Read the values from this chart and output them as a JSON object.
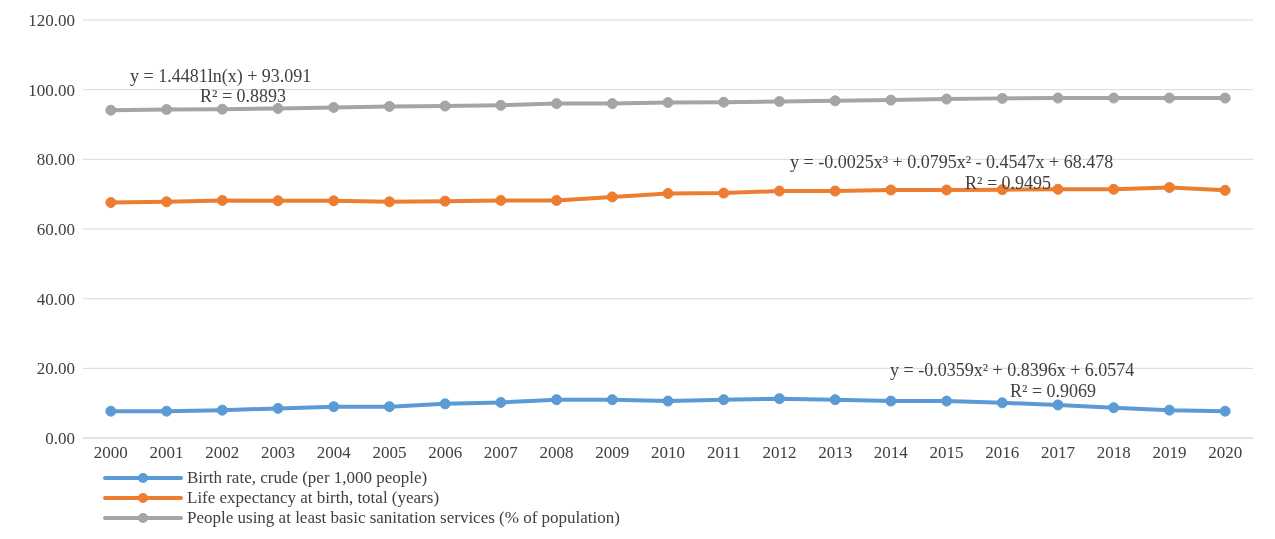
{
  "chart_data": {
    "type": "line",
    "categories": [
      "2000",
      "2001",
      "2002",
      "2003",
      "2004",
      "2005",
      "2006",
      "2007",
      "2008",
      "2009",
      "2010",
      "2011",
      "2012",
      "2013",
      "2014",
      "2015",
      "2016",
      "2017",
      "2018",
      "2019",
      "2020"
    ],
    "series": [
      {
        "name": "Birth rate, crude (per 1,000 people)",
        "color": "#5b9bd5",
        "values": [
          7.7,
          7.7,
          8.0,
          8.5,
          9.0,
          9.0,
          9.8,
          10.2,
          11.0,
          11.0,
          10.6,
          11.0,
          11.3,
          11.0,
          10.6,
          10.6,
          10.1,
          9.5,
          8.7,
          8.0,
          7.7
        ]
      },
      {
        "name": "Life expectancy at birth, total (years)",
        "color": "#ed7d31",
        "values": [
          67.6,
          67.8,
          68.2,
          68.1,
          68.1,
          67.8,
          68.0,
          68.2,
          68.2,
          69.2,
          70.2,
          70.3,
          70.9,
          70.9,
          71.2,
          71.2,
          71.3,
          71.4,
          71.4,
          71.9,
          71.1
        ]
      },
      {
        "name": "People using at least basic sanitation services (% of population)",
        "color": "#a5a5a5",
        "values": [
          94.1,
          94.3,
          94.4,
          94.6,
          94.9,
          95.2,
          95.3,
          95.5,
          96.0,
          96.0,
          96.3,
          96.4,
          96.6,
          96.8,
          97.0,
          97.3,
          97.5,
          97.6,
          97.6,
          97.6,
          97.6
        ]
      }
    ],
    "ylim": [
      0,
      120
    ],
    "yticks": [
      {
        "value": 0,
        "label": "0.00"
      },
      {
        "value": 20,
        "label": "20.00"
      },
      {
        "value": 40,
        "label": "40.00"
      },
      {
        "value": 60,
        "label": "60.00"
      },
      {
        "value": 80,
        "label": "80.00"
      },
      {
        "value": 100,
        "label": "100.00"
      },
      {
        "value": 120,
        "label": "120.00"
      }
    ],
    "grid": "y",
    "legend": "bottom left",
    "marker": "circle",
    "line_style": "solid",
    "annotations": [
      "y = 1.4481ln(x) + 93.091",
      "R² = 0.8893",
      "y = -0.0025x³ + 0.0795x² - 0.4547x + 68.478",
      "R² = 0.9495",
      "y = -0.0359x² + 0.8396x + 6.0574",
      "R² = 0.9069"
    ]
  }
}
